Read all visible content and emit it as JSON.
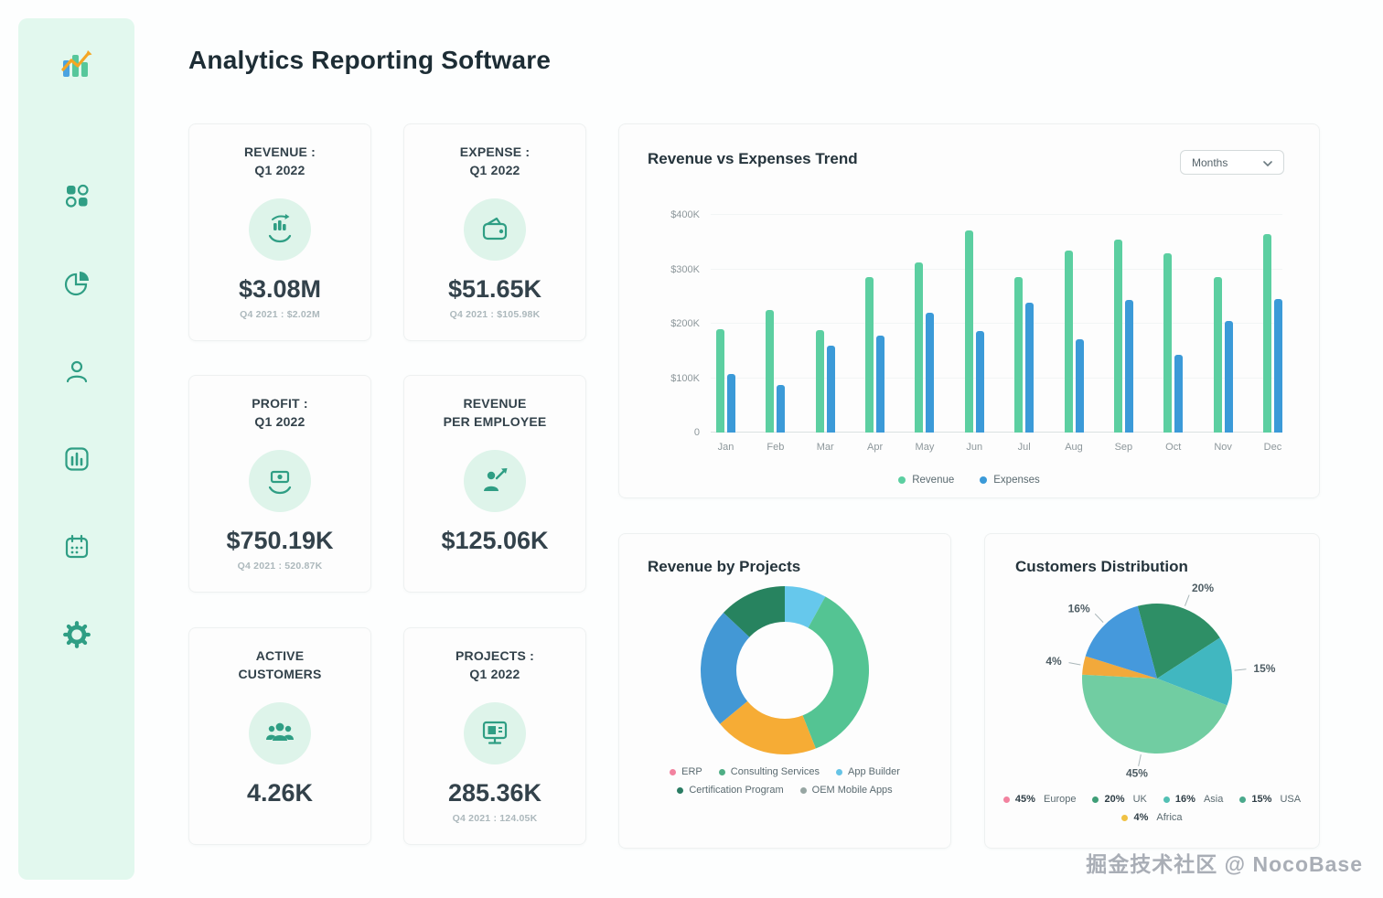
{
  "header": {
    "title": "Analytics Reporting Software"
  },
  "sidebar": {
    "icons": [
      "dashboard-icon",
      "pie-chart-icon",
      "user-icon",
      "bar-chart-icon",
      "calendar-icon",
      "settings-icon"
    ]
  },
  "kpis": [
    {
      "title": "REVENUE :",
      "title2": "Q1 2022",
      "value": "$3.08M",
      "subtitle": "Q4 2021 : $2.02M"
    },
    {
      "title": "EXPENSE :",
      "title2": "Q1 2022",
      "value": "$51.65K",
      "subtitle": "Q4 2021 : $105.98K"
    },
    {
      "title": "PROFIT :",
      "title2": "Q1 2022",
      "value": "$750.19K",
      "subtitle": "Q4 2021 : 520.87K"
    },
    {
      "title": "REVENUE",
      "title2": "PER EMPLOYEE",
      "value": "$125.06K",
      "subtitle": ""
    },
    {
      "title": "ACTIVE",
      "title2": "CUSTOMERS",
      "value": "4.26K",
      "subtitle": ""
    },
    {
      "title": "PROJECTS :",
      "title2": "Q1 2022",
      "value": "285.36K",
      "subtitle": "Q4 2021 : 124.05K"
    }
  ],
  "trend": {
    "dropdown_value": "Months"
  },
  "chart_data": [
    {
      "type": "bar",
      "title": "Revenue vs Expenses Trend",
      "categories": [
        "Jan",
        "Feb",
        "Mar",
        "Apr",
        "May",
        "Jun",
        "Jul",
        "Aug",
        "Sep",
        "Oct",
        "Nov",
        "Dec"
      ],
      "series": [
        {
          "name": "Revenue",
          "color": "#5ccfa1",
          "values": [
            190,
            225,
            188,
            285,
            313,
            372,
            286,
            335,
            355,
            330,
            285,
            365
          ]
        },
        {
          "name": "Expenses",
          "color": "#3b9ad8",
          "values": [
            107,
            87,
            160,
            178,
            220,
            187,
            238,
            172,
            244,
            143,
            205,
            245
          ]
        }
      ],
      "ylim": [
        0,
        400
      ],
      "ytick_labels": [
        "0",
        "$100K",
        "$200K",
        "$300K",
        "$400K"
      ],
      "unit": "K USD",
      "legend_position": "bottom"
    },
    {
      "type": "pie",
      "variant": "donut",
      "title": "Revenue by Projects",
      "rotation": 0,
      "slices": [
        {
          "label": "App Builder",
          "pct": 8,
          "color": "#66c8ec"
        },
        {
          "label": "Consulting Services",
          "pct": 36,
          "color": "#54c493"
        },
        {
          "label": "OEM Mobile Apps",
          "pct": 20,
          "color": "#f6ac35"
        },
        {
          "label": "ERP",
          "pct": 23,
          "color": "#4398d5"
        },
        {
          "label": "Certification Program",
          "pct": 13,
          "color": "#27835f"
        }
      ],
      "legend": [
        {
          "label": "ERP",
          "color": "#f2829f"
        },
        {
          "label": "Consulting Services",
          "color": "#4fae85"
        },
        {
          "label": "App Builder",
          "color": "#66c4e6"
        },
        {
          "label": "Certification Program",
          "color": "#2a7c63"
        },
        {
          "label": "OEM Mobile Apps",
          "color": "#97a6a3"
        }
      ]
    },
    {
      "type": "pie",
      "title": "Customers Distribution",
      "rotation": -15,
      "slices": [
        {
          "label": "UK",
          "pct": 20,
          "color": "#2e8f66"
        },
        {
          "label": "USA",
          "pct": 15,
          "color": "#41b7c0"
        },
        {
          "label": "Europe",
          "pct": 45,
          "color": "#71cda2"
        },
        {
          "label": "Africa",
          "pct": 4,
          "color": "#f2a93b"
        },
        {
          "label": "Asia",
          "pct": 16,
          "color": "#4599dc"
        }
      ],
      "legend": [
        {
          "pct": "45%",
          "label": "Europe",
          "color": "#f2829f"
        },
        {
          "pct": "20%",
          "label": "UK",
          "color": "#3f9e77"
        },
        {
          "pct": "16%",
          "label": "Asia",
          "color": "#52c0b4"
        },
        {
          "pct": "15%",
          "label": "USA",
          "color": "#4aa98c"
        },
        {
          "pct": "4%",
          "label": "Africa",
          "color": "#f0c244"
        }
      ]
    }
  ],
  "watermark": "掘金技术社区 @ NocoBase"
}
